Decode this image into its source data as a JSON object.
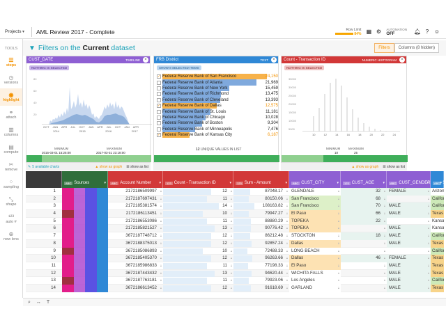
{
  "topbar": {
    "projects_label": "Projects",
    "title": "AML Review 2017 - Complete",
    "row_limit_label": "Row Limit",
    "row_limit_pct": "84%",
    "automation_label": "AUTOMATION",
    "automation_value": "OFF"
  },
  "sidebar": {
    "tools_label": "TOOLS",
    "items": [
      {
        "label": "steps",
        "icon": "steps-icon",
        "active": true
      },
      {
        "label": "versions",
        "icon": "clock-icon",
        "active": false
      },
      {
        "label": "highlight",
        "icon": "highlight-icon",
        "active": true
      },
      {
        "label": "attach",
        "icon": "link-icon",
        "active": false
      },
      {
        "label": "columns",
        "icon": "columns-icon",
        "active": false
      },
      {
        "label": "compute",
        "icon": "compute-icon",
        "active": false
      },
      {
        "label": "remove",
        "icon": "scissors-icon",
        "active": false
      },
      {
        "label": "sampling",
        "icon": "sampling-icon",
        "active": false
      },
      {
        "label": "shape",
        "icon": "shape-icon",
        "active": false
      },
      {
        "label": "auto #",
        "icon": "auto-number-icon",
        "active": false
      },
      {
        "label": "new lens",
        "icon": "lens-icon",
        "active": false
      }
    ]
  },
  "filters": {
    "heading_prefix": "Filters on the",
    "heading_bold": "Current",
    "heading_suffix": "dataset",
    "filters_button": "Filters",
    "columns_button": "Columns (8 hidden)"
  },
  "card_date": {
    "name": "CUST_DATE",
    "type": "TIMELINE",
    "chip": "NOTHING IS SELECTED",
    "y_ticks": [
      "80",
      "60",
      "40",
      "20"
    ],
    "x_ticks": [
      "OCT",
      "JAN",
      "APR",
      "JUL",
      "OCT",
      "JAN",
      "APR",
      "JUL",
      "OCT",
      "JAN",
      "APR"
    ],
    "years": [
      "2014",
      "2015",
      "2016",
      "2017"
    ],
    "min_label": "MINIMUM",
    "max_label": "MAXIMUM",
    "min_value": "2015-03-01 15:25:00",
    "max_value": "2017-03-31 23:18:00",
    "available_charts": "5 available charts",
    "show_graph": "show as graph",
    "show_list": "show as list"
  },
  "card_district": {
    "name": "FRB District",
    "type": "TEXT",
    "chip": "SHOW 8 SELECTED ITEMS",
    "unique_count": "12",
    "unique_label": "UNIQUE VALUES IN LIST",
    "show_graph": "show as graph",
    "show_list": "show as list",
    "items": [
      {
        "label": "Federal Reserve Bank of San Francisco",
        "count": "24,150",
        "frac": 1.0,
        "checked": true,
        "orange": true
      },
      {
        "label": "Federal Reserve Bank of Atlanta",
        "count": "21,969",
        "frac": 0.9,
        "checked": false,
        "orange": false
      },
      {
        "label": "Federal Reserve Bank of New York",
        "count": "15,459",
        "frac": 0.64,
        "checked": false,
        "orange": false
      },
      {
        "label": "Federal Reserve Bank of Richmond",
        "count": "13,475",
        "frac": 0.56,
        "checked": false,
        "orange": false
      },
      {
        "label": "Federal Reserve Bank of Cleveland",
        "count": "13,393",
        "frac": 0.55,
        "checked": false,
        "orange": false
      },
      {
        "label": "Federal Reserve Bank of Dallas",
        "count": "12,575",
        "frac": 0.52,
        "checked": true,
        "orange": true
      },
      {
        "label": "Federal Reserve Bank of St. Louis",
        "count": "11,181",
        "frac": 0.46,
        "checked": false,
        "orange": false
      },
      {
        "label": "Federal Reserve Bank of Chicago",
        "count": "10,028",
        "frac": 0.41,
        "checked": false,
        "orange": false
      },
      {
        "label": "Federal Reserve Bank of Boston",
        "count": "9,304",
        "frac": 0.38,
        "checked": false,
        "orange": false
      },
      {
        "label": "Federal Reserve Bank of Minneapolis",
        "count": "7,476",
        "frac": 0.31,
        "checked": false,
        "orange": false
      },
      {
        "label": "Federal Reserve Bank of Kansas City",
        "count": "6,187",
        "frac": 0.26,
        "checked": true,
        "orange": true
      }
    ]
  },
  "card_count": {
    "name": "Count - Transaction ID",
    "type": "NUMERIC HISTOGRAM",
    "chip": "NOTHING IS SELECTED",
    "y_ticks": [
      "35000",
      "30000",
      "25000",
      "20000",
      "15000",
      "10000",
      "5000"
    ],
    "x_ticks": [
      "10",
      "12",
      "14",
      "16",
      "18",
      "20",
      "22",
      "24"
    ],
    "min_label": "MINIMUM",
    "max_label": "MAXIMUM",
    "min_value": "10",
    "max_value": "25",
    "show_graph": "show as graph",
    "show_list": "show as list"
  },
  "table": {
    "columns": [
      {
        "label": "",
        "tag": ""
      },
      {
        "label": "Sources",
        "tag": "ABC"
      },
      {
        "label": "Account Number",
        "tag": "ABC"
      },
      {
        "label": "Count - Transaction ID",
        "tag": "123"
      },
      {
        "label": "Sum - Amount",
        "tag": "123"
      },
      {
        "label": "CUST_CITY",
        "tag": "ABC"
      },
      {
        "label": "CUST_AGE",
        "tag": "123"
      },
      {
        "label": "CUST_GENDER",
        "tag": "ABC"
      },
      {
        "label": "State",
        "tag": "ABC"
      }
    ],
    "rows": [
      {
        "n": "1",
        "acct": "2172186509997",
        "cnt": "12",
        "sum": "87048.17",
        "city": "GLENDALE",
        "age": "32",
        "gender": "FEMALE",
        "state": "Arizona"
      },
      {
        "n": "2",
        "acct": "2172187697431",
        "cnt": "11",
        "sum": "80150.06",
        "city": "San Francisco",
        "age": "68",
        "gender": "",
        "state": "California"
      },
      {
        "n": "3",
        "acct": "2172185381574",
        "cnt": "14",
        "sum": "108163.82",
        "city": "San Francisco",
        "age": "70",
        "gender": "MALE",
        "state": "California"
      },
      {
        "n": "4",
        "acct": "2172186113451",
        "cnt": "10",
        "sum": "79947.27",
        "city": "El Paso",
        "age": "66",
        "gender": "MALE",
        "state": "Texas"
      },
      {
        "n": "5",
        "acct": "2172186553086",
        "cnt": "11",
        "sum": "88880.29",
        "city": "TOPEKA",
        "age": "22",
        "gender": "",
        "state": "Kansas"
      },
      {
        "n": "6",
        "acct": "2172185821527",
        "cnt": "13",
        "sum": "90776.42",
        "city": "TOPEKA",
        "age": "",
        "gender": "MALE",
        "state": "Kansas"
      },
      {
        "n": "7",
        "acct": "3672187748712",
        "cnt": "12",
        "sum": "86212.48",
        "city": "STOCKTON",
        "age": "18",
        "gender": "MALE",
        "state": "California"
      },
      {
        "n": "8",
        "acct": "3672188375013",
        "cnt": "12",
        "sum": "92857.24",
        "city": "Dallas",
        "age": "",
        "gender": "MALE",
        "state": "Texas"
      },
      {
        "n": "9",
        "acct": "3672185086893",
        "cnt": "10",
        "sum": "72488.33",
        "city": "LONG BEACH",
        "age": "",
        "gender": "",
        "state": "California"
      },
      {
        "n": "10",
        "acct": "3672185405370",
        "cnt": "12",
        "sum": "96263.66",
        "city": "Dallas",
        "age": "46",
        "gender": "FEMALE",
        "state": "Texas"
      },
      {
        "n": "11",
        "acct": "3672185986833",
        "cnt": "11",
        "sum": "77198.33",
        "city": "El Paso",
        "age": "",
        "gender": "MALE",
        "state": "Texas"
      },
      {
        "n": "12",
        "acct": "3672187443432",
        "cnt": "13",
        "sum": "94620.44",
        "city": "WICHITA FALLS",
        "age": "",
        "gender": "MALE",
        "state": "Texas"
      },
      {
        "n": "13",
        "acct": "3672187763181",
        "cnt": "11",
        "sum": "79923.06",
        "city": "Los Angeles",
        "age": "",
        "gender": "MALE",
        "state": "California"
      },
      {
        "n": "14",
        "acct": "3672186613452",
        "cnt": "12",
        "sum": "91618.69",
        "city": "GARLAND",
        "age": "",
        "gender": "MALE",
        "state": "Texas"
      }
    ]
  },
  "colors": {
    "date_header": "#8e5fd3",
    "district_header": "#2f88d6",
    "count_header": "#d23838",
    "accent": "#f39200",
    "teal": "#1aa2b8"
  }
}
